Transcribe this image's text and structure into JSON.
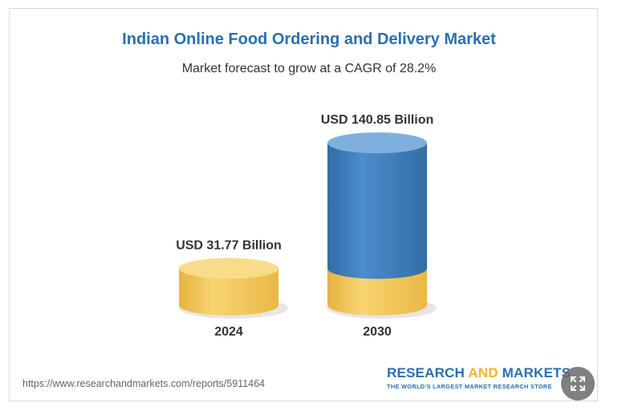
{
  "chart_data": {
    "type": "bar",
    "title": "Indian Online Food Ordering and Delivery Market",
    "subtitle": "Market forecast to grow at a CAGR of 28.2%",
    "categories": [
      "2024",
      "2030"
    ],
    "values": [
      31.77,
      140.85
    ],
    "data_labels": [
      "USD 31.77 Billion",
      "USD 140.85 Billion"
    ],
    "unit": "USD Billion",
    "grid": false,
    "legend": "none",
    "colors": {
      "base": "#f2c757",
      "base_top": "#f8dc8a",
      "growth": "#3f80bf",
      "growth_top": "#7fb0dd",
      "title": "#2a6fb0"
    }
  },
  "footer": {
    "source_url": "https://www.researchandmarkets.com/reports/5911464",
    "logo_part1": "RESEARCH ",
    "logo_part2": "AND ",
    "logo_part3": "MARKETS",
    "logo_tagline": "THE WORLD'S LARGEST MARKET RESEARCH STORE"
  },
  "controls": {
    "expand_icon": "expand-arrows-icon"
  }
}
